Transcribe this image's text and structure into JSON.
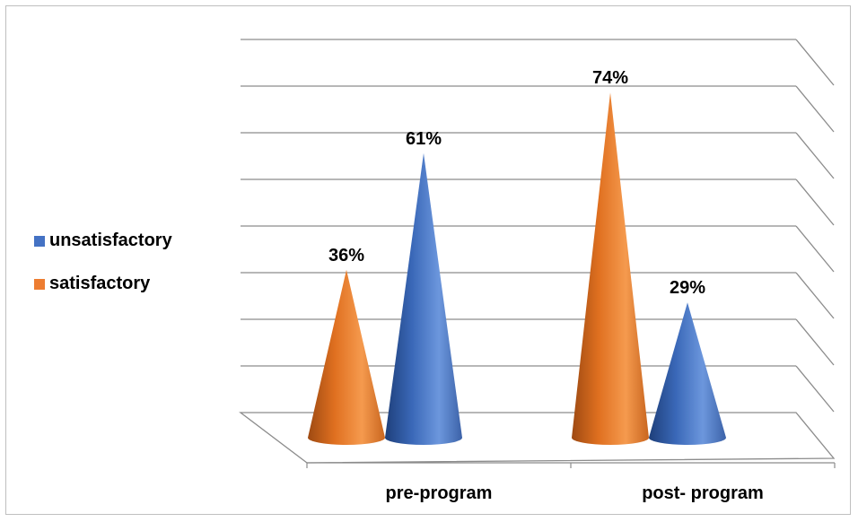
{
  "chart_data": {
    "type": "bar",
    "style": "3d-cone",
    "title": "",
    "xlabel": "",
    "ylabel": "",
    "categories": [
      "pre-program",
      "post- program"
    ],
    "series": [
      {
        "name": "satisfactory",
        "values": [
          36,
          74
        ],
        "labels": [
          "36%",
          "74%"
        ],
        "color": "#ED7D31"
      },
      {
        "name": "unsatisfactory",
        "values": [
          61,
          29
        ],
        "labels": [
          "61%",
          "29%"
        ],
        "color": "#4472C4"
      }
    ],
    "ylim": [
      0,
      80
    ],
    "grid": true,
    "legend": "left",
    "legend_order": [
      "unsatisfactory",
      "satisfactory"
    ]
  }
}
